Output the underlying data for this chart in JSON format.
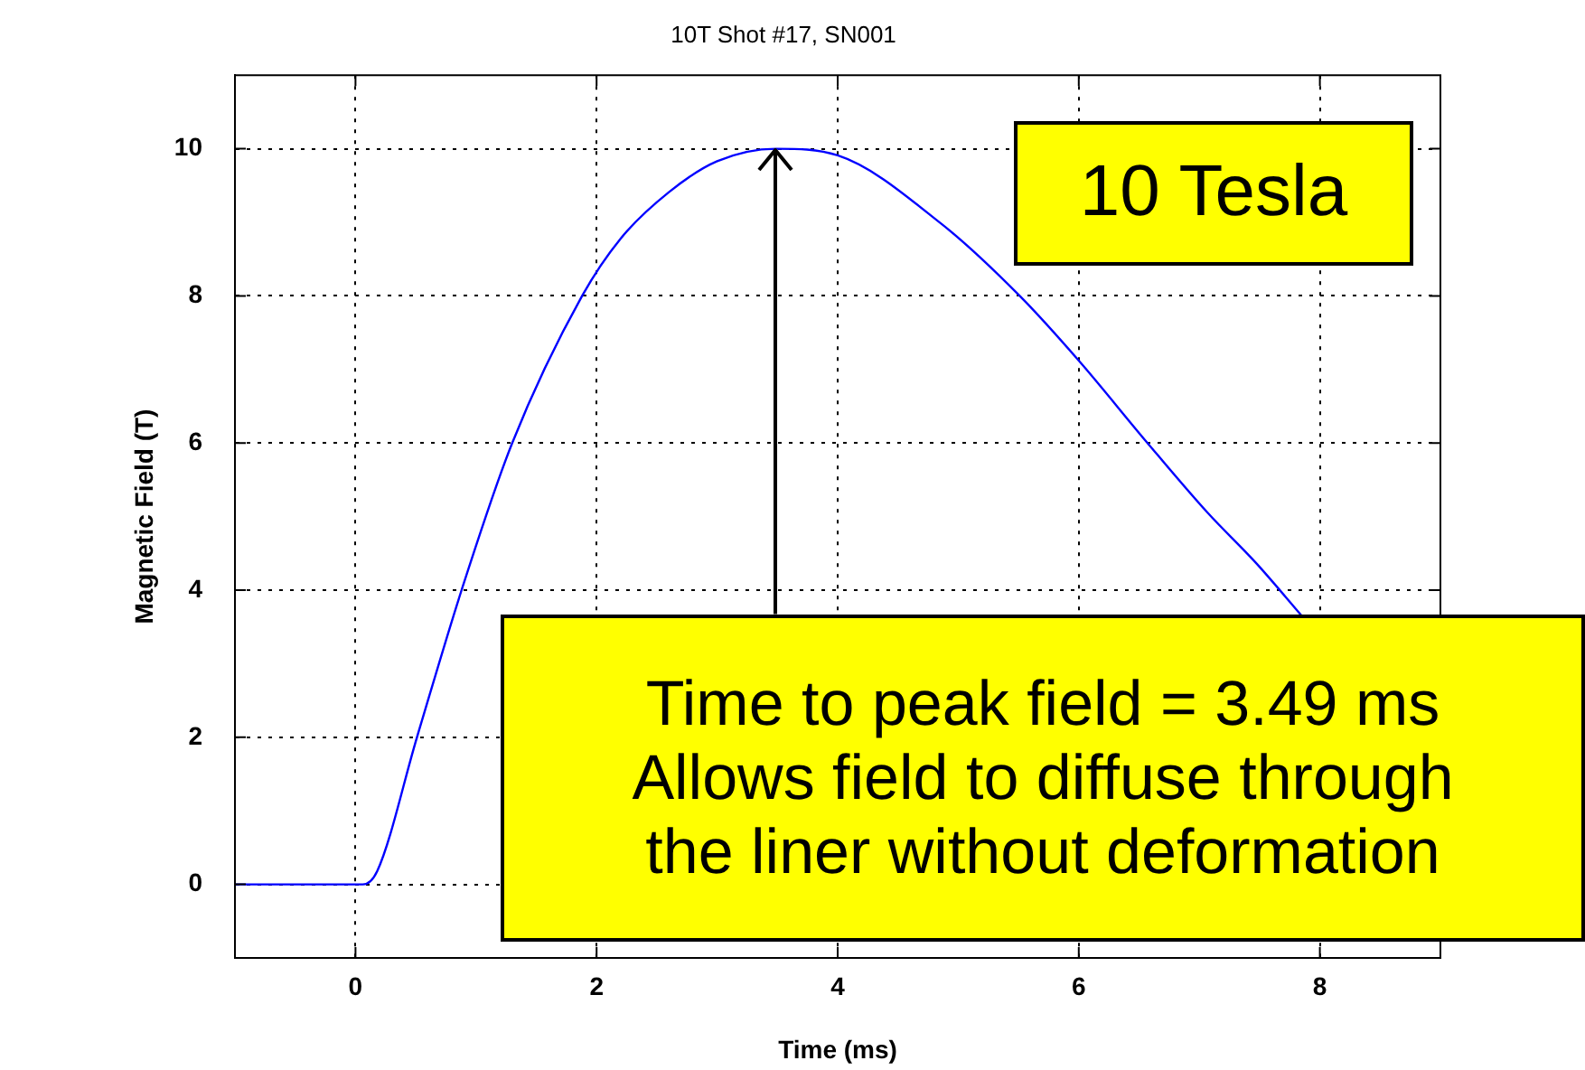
{
  "chart_data": {
    "type": "line",
    "title": "10T Shot #17, SN001",
    "xlabel": "Time (ms)",
    "ylabel": "Magnetic Field (T)",
    "x": [
      -1,
      0,
      0.06,
      0.18,
      0.51,
      0.88,
      1.3,
      1.88,
      2.2,
      2.6,
      3.0,
      3.49,
      4.0,
      4.86,
      5.51,
      6.0,
      6.57,
      7.07,
      7.47,
      7.85
    ],
    "series": [
      {
        "color": "#0000ff",
        "values": [
          0,
          0,
          0,
          0.18,
          2.0,
          4.0,
          6.0,
          8.0,
          8.78,
          9.41,
          9.83,
          10,
          9.91,
          8.98,
          8.0,
          7.12,
          6.0,
          5.05,
          4.37,
          3.65
        ]
      }
    ],
    "xlim": [
      -1,
      9
    ],
    "xticks": [
      0,
      2,
      4,
      6,
      8
    ],
    "ylim": [
      -1,
      11
    ],
    "yticks": [
      0,
      2,
      4,
      6,
      8,
      10
    ],
    "grid": true,
    "legend": false,
    "marker": "none",
    "line_style": "solid",
    "annotations": [
      "10 Tesla",
      {
        "text": "Time to peak field = 3.49 ms\nAllows field to diffuse through\nthe liner without deformation",
        "x": 3.49,
        "y": 10
      }
    ]
  }
}
